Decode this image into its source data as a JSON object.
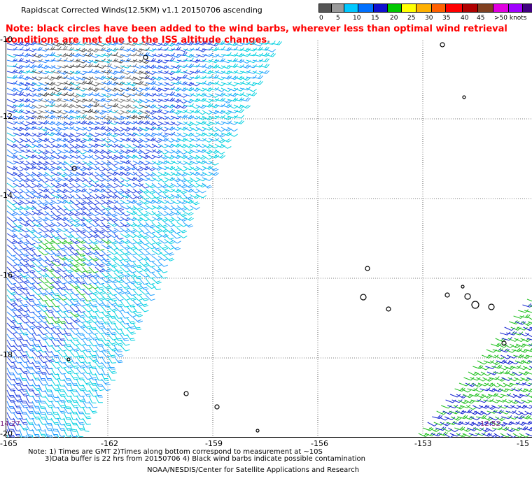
{
  "title": "Rapidscat Corrected Winds(12.5KM) v1.1 20150706 ascending",
  "note": "Note: black circles have been added to the wind barbs, wherever less than optimal wind retrieval conditions are met due to the ISS altitude changes.",
  "legend": {
    "labels": [
      "0",
      "5",
      "10",
      "15",
      "20",
      "25",
      "30",
      "35",
      "40",
      "45",
      ">50 knots"
    ],
    "colors": [
      "#555555",
      "#9a9a9a",
      "#00c8ff",
      "#0070ff",
      "#1010d0",
      "#00c800",
      "#ffff00",
      "#ffb000",
      "#ff6000",
      "#ff0000",
      "#b00000",
      "#804020",
      "#e000e0",
      "#a000ff",
      "#400080"
    ]
  },
  "axes": {
    "lon_labels": [
      "-165",
      "-162",
      "-159",
      "-156",
      "-153",
      "-15"
    ],
    "lat_labels": [
      "-10",
      "-12",
      "-14",
      "-16",
      "-18",
      "-20"
    ]
  },
  "times": {
    "left": "14:27",
    "right": "12:52"
  },
  "footer": {
    "line1": "Note: 1) Times are GMT 2)Times along bottom correspond to measurement at ~10S",
    "line2": "3)Data buffer is 22 hrs from 20150706 4) Black wind barbs indicate possible contamination",
    "credit": "NOAA/NESDIS/Center for Satellite Applications and Research"
  }
}
